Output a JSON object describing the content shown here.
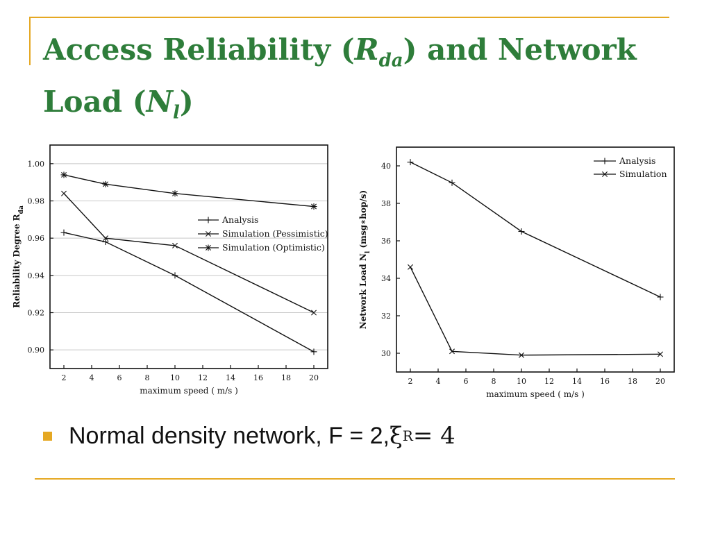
{
  "slide": {
    "title": {
      "part1": "Access Reliability (",
      "var1": "R",
      "sub1": "da",
      "part2": ") and Network",
      "part3": "Load (",
      "var2": "N",
      "sub2": "l",
      "part4": ")"
    },
    "bullet": {
      "text": "Normal density network, F = 2, ",
      "symbol": "ξ",
      "sub": "R",
      "tail": " = 4"
    },
    "colors": {
      "title": "#2e7d3a",
      "accent": "#e5a823"
    }
  },
  "chart_data": [
    {
      "type": "line",
      "xlabel": "maximum speed ( m/s )",
      "ylabel": "Reliability Degree R",
      "ylabel_sub": "da",
      "xlim": [
        1,
        21
      ],
      "ylim": [
        0.89,
        1.01
      ],
      "xticks": [
        2,
        4,
        6,
        8,
        10,
        12,
        14,
        16,
        18,
        20
      ],
      "yticks": [
        0.9,
        0.92,
        0.94,
        0.96,
        0.98,
        1.0
      ],
      "ytick_labels": [
        "0.90",
        "0.92",
        "0.94",
        "0.96",
        "0.98",
        "1.00"
      ],
      "grid": "horizontal",
      "legend": "center-right",
      "x": [
        2,
        5,
        10,
        20
      ],
      "series": [
        {
          "name": "Analysis",
          "marker": "plus",
          "values": [
            0.963,
            0.958,
            0.94,
            0.899
          ]
        },
        {
          "name": "Simulation (Pessimistic)",
          "marker": "x",
          "values": [
            0.984,
            0.96,
            0.956,
            0.92
          ]
        },
        {
          "name": "Simulation (Optimistic)",
          "marker": "star",
          "values": [
            0.994,
            0.989,
            0.984,
            0.977
          ]
        }
      ]
    },
    {
      "type": "line",
      "xlabel": "maximum speed ( m/s )",
      "ylabel": "Network Load  N",
      "ylabel_sub": "l",
      "ylabel_tail": "  (msg∗hop/s)",
      "xlim": [
        1,
        21
      ],
      "ylim": [
        29,
        41
      ],
      "xticks": [
        2,
        4,
        6,
        8,
        10,
        12,
        14,
        16,
        18,
        20
      ],
      "yticks": [
        30,
        32,
        34,
        36,
        38,
        40
      ],
      "ytick_labels": [
        "30",
        "32",
        "34",
        "36",
        "38",
        "40"
      ],
      "grid": "none",
      "legend": "top-right",
      "x": [
        2,
        5,
        10,
        20
      ],
      "series": [
        {
          "name": "Analysis",
          "marker": "plus",
          "values": [
            40.2,
            39.1,
            36.5,
            33.0
          ]
        },
        {
          "name": "Simulation",
          "marker": "x",
          "values": [
            34.6,
            30.1,
            29.9,
            29.95
          ]
        }
      ]
    }
  ]
}
